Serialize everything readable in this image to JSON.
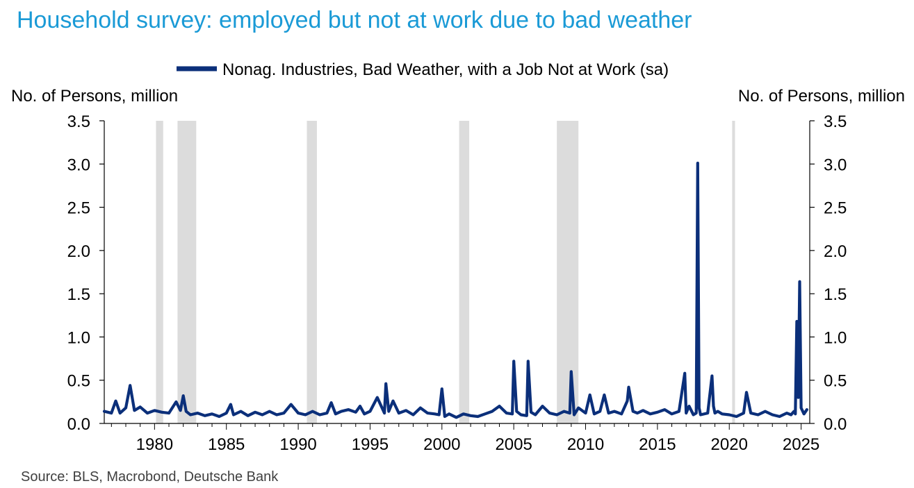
{
  "chart_data": {
    "type": "line",
    "title": "Household survey: employed but not at work due to bad weather",
    "ylabel_left": "No. of Persons, million",
    "ylabel_right": "No. of Persons, million",
    "source": "Source: BLS, Macrobond, Deutsche Bank",
    "ylim": [
      0,
      3.5
    ],
    "xlim": [
      1976.5,
      2025.6
    ],
    "y_ticks": [
      "0.0",
      "0.5",
      "1.0",
      "1.5",
      "2.0",
      "2.5",
      "3.0",
      "3.5"
    ],
    "x_ticks": [
      "1980",
      "1985",
      "1990",
      "1995",
      "2000",
      "2005",
      "2010",
      "2015",
      "2020",
      "2025"
    ],
    "legend_position": "top-center",
    "grid": false,
    "recessions": [
      [
        1980.1,
        1980.6
      ],
      [
        1981.6,
        1982.9
      ],
      [
        1990.6,
        1991.3
      ],
      [
        2001.2,
        2001.9
      ],
      [
        2008.0,
        2009.5
      ],
      [
        2020.2,
        2020.4
      ]
    ],
    "series": [
      {
        "name": "Nonag. Industries, Bad Weather, with a Job Not at Work (sa)",
        "color": "#0b2f7a",
        "x": [
          1976.5,
          1977.0,
          1977.3,
          1977.6,
          1978.0,
          1978.3,
          1978.6,
          1979.0,
          1979.5,
          1980.0,
          1980.5,
          1981.0,
          1981.5,
          1981.8,
          1982.0,
          1982.2,
          1982.5,
          1983.0,
          1983.5,
          1984.0,
          1984.5,
          1985.0,
          1985.3,
          1985.5,
          1986.0,
          1986.5,
          1987.0,
          1987.5,
          1988.0,
          1988.5,
          1989.0,
          1989.5,
          1990.0,
          1990.5,
          1991.0,
          1991.5,
          1992.0,
          1992.3,
          1992.6,
          1993.0,
          1993.5,
          1994.0,
          1994.3,
          1994.6,
          1995.0,
          1995.5,
          1996.0,
          1996.1,
          1996.3,
          1996.6,
          1997.0,
          1997.5,
          1998.0,
          1998.5,
          1999.0,
          1999.5,
          1999.8,
          2000.0,
          2000.2,
          2000.5,
          2001.0,
          2001.5,
          2002.0,
          2002.5,
          2003.0,
          2003.5,
          2004.0,
          2004.5,
          2004.9,
          2005.0,
          2005.2,
          2005.5,
          2005.9,
          2006.0,
          2006.2,
          2006.5,
          2007.0,
          2007.5,
          2008.0,
          2008.5,
          2008.9,
          2009.0,
          2009.2,
          2009.5,
          2010.0,
          2010.3,
          2010.6,
          2011.0,
          2011.3,
          2011.6,
          2012.0,
          2012.5,
          2012.9,
          2013.0,
          2013.3,
          2013.6,
          2014.0,
          2014.5,
          2015.0,
          2015.5,
          2016.0,
          2016.5,
          2016.9,
          2017.0,
          2017.2,
          2017.5,
          2017.7,
          2017.8,
          2017.9,
          2018.0,
          2018.5,
          2018.8,
          2018.9,
          2019.0,
          2019.2,
          2019.5,
          2020.0,
          2020.5,
          2021.0,
          2021.2,
          2021.5,
          2022.0,
          2022.5,
          2023.0,
          2023.5,
          2024.0,
          2024.3,
          2024.5,
          2024.6,
          2024.7,
          2024.8,
          2024.9,
          2025.0,
          2025.2,
          2025.4
        ],
        "values": [
          0.14,
          0.12,
          0.26,
          0.12,
          0.18,
          0.44,
          0.15,
          0.19,
          0.12,
          0.15,
          0.13,
          0.12,
          0.25,
          0.15,
          0.32,
          0.14,
          0.1,
          0.12,
          0.09,
          0.11,
          0.08,
          0.12,
          0.22,
          0.1,
          0.14,
          0.09,
          0.13,
          0.1,
          0.14,
          0.1,
          0.12,
          0.22,
          0.12,
          0.1,
          0.14,
          0.1,
          0.12,
          0.24,
          0.11,
          0.14,
          0.16,
          0.13,
          0.2,
          0.11,
          0.14,
          0.3,
          0.12,
          0.46,
          0.14,
          0.26,
          0.12,
          0.15,
          0.1,
          0.18,
          0.12,
          0.11,
          0.1,
          0.4,
          0.08,
          0.11,
          0.07,
          0.11,
          0.09,
          0.08,
          0.11,
          0.14,
          0.2,
          0.12,
          0.11,
          0.72,
          0.14,
          0.1,
          0.09,
          0.72,
          0.13,
          0.1,
          0.2,
          0.12,
          0.1,
          0.14,
          0.12,
          0.6,
          0.1,
          0.18,
          0.12,
          0.33,
          0.11,
          0.14,
          0.33,
          0.12,
          0.14,
          0.11,
          0.26,
          0.42,
          0.14,
          0.12,
          0.15,
          0.11,
          0.13,
          0.16,
          0.11,
          0.14,
          0.58,
          0.12,
          0.2,
          0.1,
          0.12,
          3.01,
          0.18,
          0.1,
          0.12,
          0.55,
          0.2,
          0.12,
          0.14,
          0.11,
          0.1,
          0.08,
          0.12,
          0.36,
          0.12,
          0.1,
          0.14,
          0.1,
          0.08,
          0.12,
          0.1,
          0.14,
          0.11,
          1.18,
          0.3,
          1.64,
          0.18,
          0.11,
          0.16
        ]
      }
    ]
  }
}
